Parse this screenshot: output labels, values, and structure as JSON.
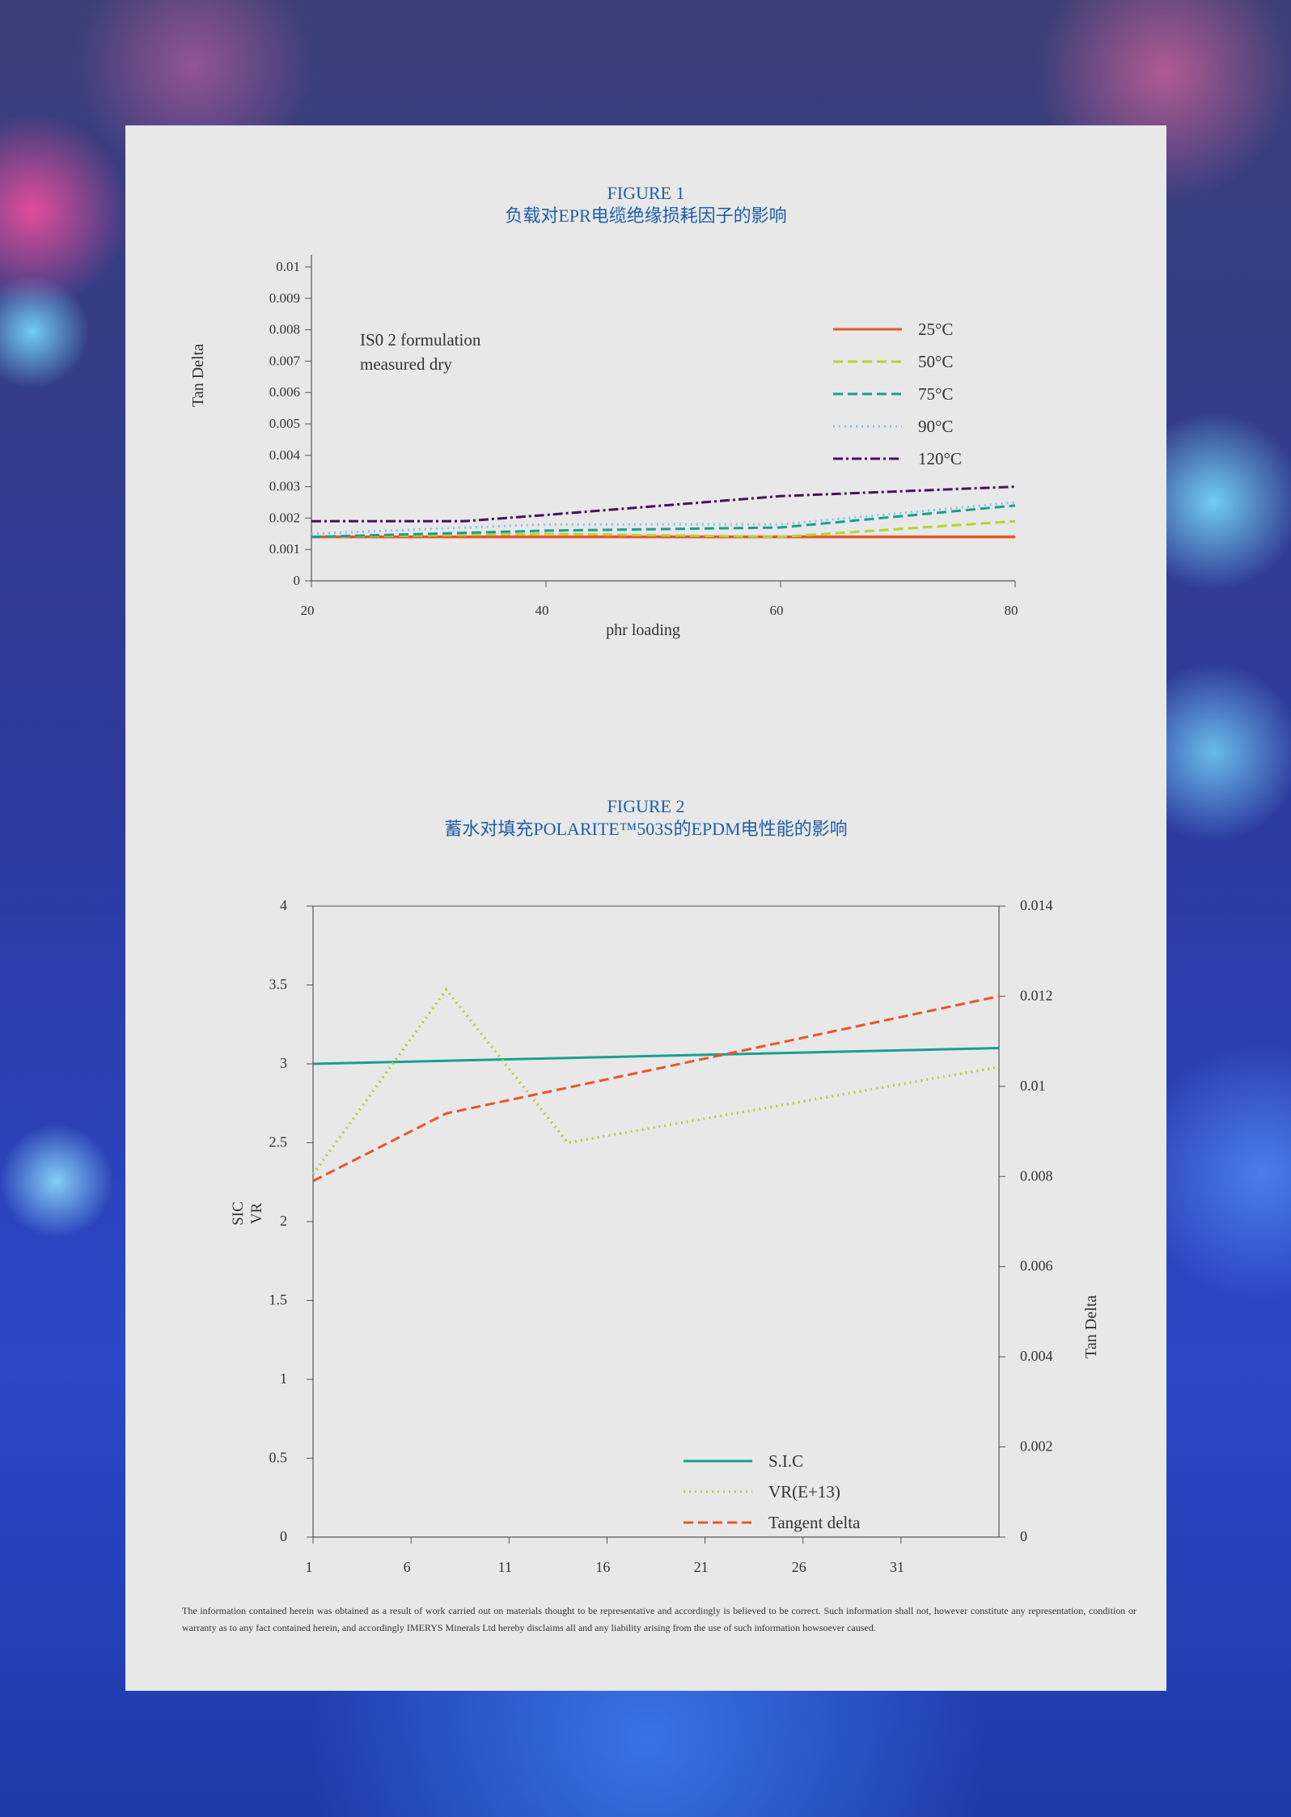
{
  "figure1": {
    "title": "FIGURE 1",
    "subtitle": "负载对EPR电缆绝缘损耗因子的影响",
    "annotation_line1": "IS0 2 formulation",
    "annotation_line2": "measured dry"
  },
  "figure2": {
    "title": "FIGURE 2",
    "subtitle": "蓄水对填充POLARITE™503S的EPDM电性能的影响"
  },
  "disclaimer": "The information contained herein was obtained as a result of work carried out on materials thought to be representative and accordingly is believed to be correct. Such information shall not, however constitute any representation, condition or warranty as to any fact contained herein, and accordingly IMERYS Minerals Ltd hereby disclaims all and any liability arising from the use of such information howsoever caused.",
  "colors": {
    "orange": "#e8562a",
    "lime": "#b5d334",
    "teal": "#17a08e",
    "lightblue": "#7ec4e8",
    "purple": "#4a1259",
    "title_blue": "#1f5fa8"
  },
  "chart_data": [
    {
      "type": "line",
      "title": "FIGURE 1",
      "subtitle": "负载对EPR电缆绝缘损耗因子的影响",
      "xlabel": "phr loading",
      "ylabel": "Tan Delta",
      "xlim": [
        20,
        80
      ],
      "ylim": [
        0,
        0.01
      ],
      "xticks": [
        "20",
        "40",
        "60",
        "80"
      ],
      "yticks": [
        "0",
        "0.001",
        "0.002",
        "0.003",
        "0.004",
        "0.005",
        "0.006",
        "0.007",
        "0.008",
        "0.009",
        "0.01"
      ],
      "legend": "top-right",
      "series": [
        {
          "name": "25°C",
          "color": "#e8562a",
          "style": "solid",
          "x": [
            20,
            40,
            60,
            80
          ],
          "y": [
            0.0014,
            0.0014,
            0.0014,
            0.0014
          ]
        },
        {
          "name": "50°C",
          "color": "#b5d334",
          "style": "dashed",
          "x": [
            20,
            40,
            60,
            80
          ],
          "y": [
            0.0014,
            0.0015,
            0.0014,
            0.0019
          ]
        },
        {
          "name": "75°C",
          "color": "#17a08e",
          "style": "dashed",
          "x": [
            20,
            40,
            60,
            80
          ],
          "y": [
            0.0014,
            0.0016,
            0.0017,
            0.0024
          ]
        },
        {
          "name": "90°C",
          "color": "#7ec4e8",
          "style": "dotted",
          "x": [
            20,
            40,
            60,
            80
          ],
          "y": [
            0.0015,
            0.0018,
            0.0018,
            0.0025
          ]
        },
        {
          "name": "120°C",
          "color": "#4a1259",
          "style": "dashdot",
          "x": [
            20,
            33,
            40,
            60,
            80
          ],
          "y": [
            0.0019,
            0.0019,
            0.0021,
            0.0027,
            0.003
          ]
        }
      ]
    },
    {
      "type": "line",
      "title": "FIGURE 2",
      "subtitle": "蓄水对填充POLARITE™503S的EPDM电性能的影响",
      "ylabel_left": [
        "SIC",
        "VR"
      ],
      "ylabel_right": "Tan Delta",
      "xlim": [
        1,
        36
      ],
      "ylim_left": [
        0,
        4
      ],
      "ylim_right": [
        0,
        0.014
      ],
      "xticks": [
        "1",
        "6",
        "11",
        "16",
        "21",
        "26",
        "31"
      ],
      "yticks_left": [
        "0",
        "0.5",
        "1",
        "1.5",
        "2",
        "2.5",
        "3",
        "3.5",
        "4"
      ],
      "yticks_right": [
        "0",
        "0.002",
        "0.004",
        "0.006",
        "0.008",
        "0.01",
        "0.012",
        "0.014"
      ],
      "legend": "bottom-center",
      "series": [
        {
          "name": "S.I.C",
          "axis": "left",
          "color": "#17a08e",
          "style": "solid",
          "x": [
            1,
            36
          ],
          "y": [
            3.0,
            3.1
          ]
        },
        {
          "name": "VR(E+13)",
          "axis": "left",
          "color": "#b5d334",
          "style": "dotted",
          "x": [
            1,
            7.8,
            14,
            36
          ],
          "y": [
            2.3,
            3.47,
            2.5,
            2.98
          ]
        },
        {
          "name": "Tangent delta",
          "axis": "right",
          "color": "#e8562a",
          "style": "dashed",
          "x": [
            1,
            7.8,
            36
          ],
          "y": [
            0.0079,
            0.0094,
            0.012
          ]
        }
      ]
    }
  ]
}
